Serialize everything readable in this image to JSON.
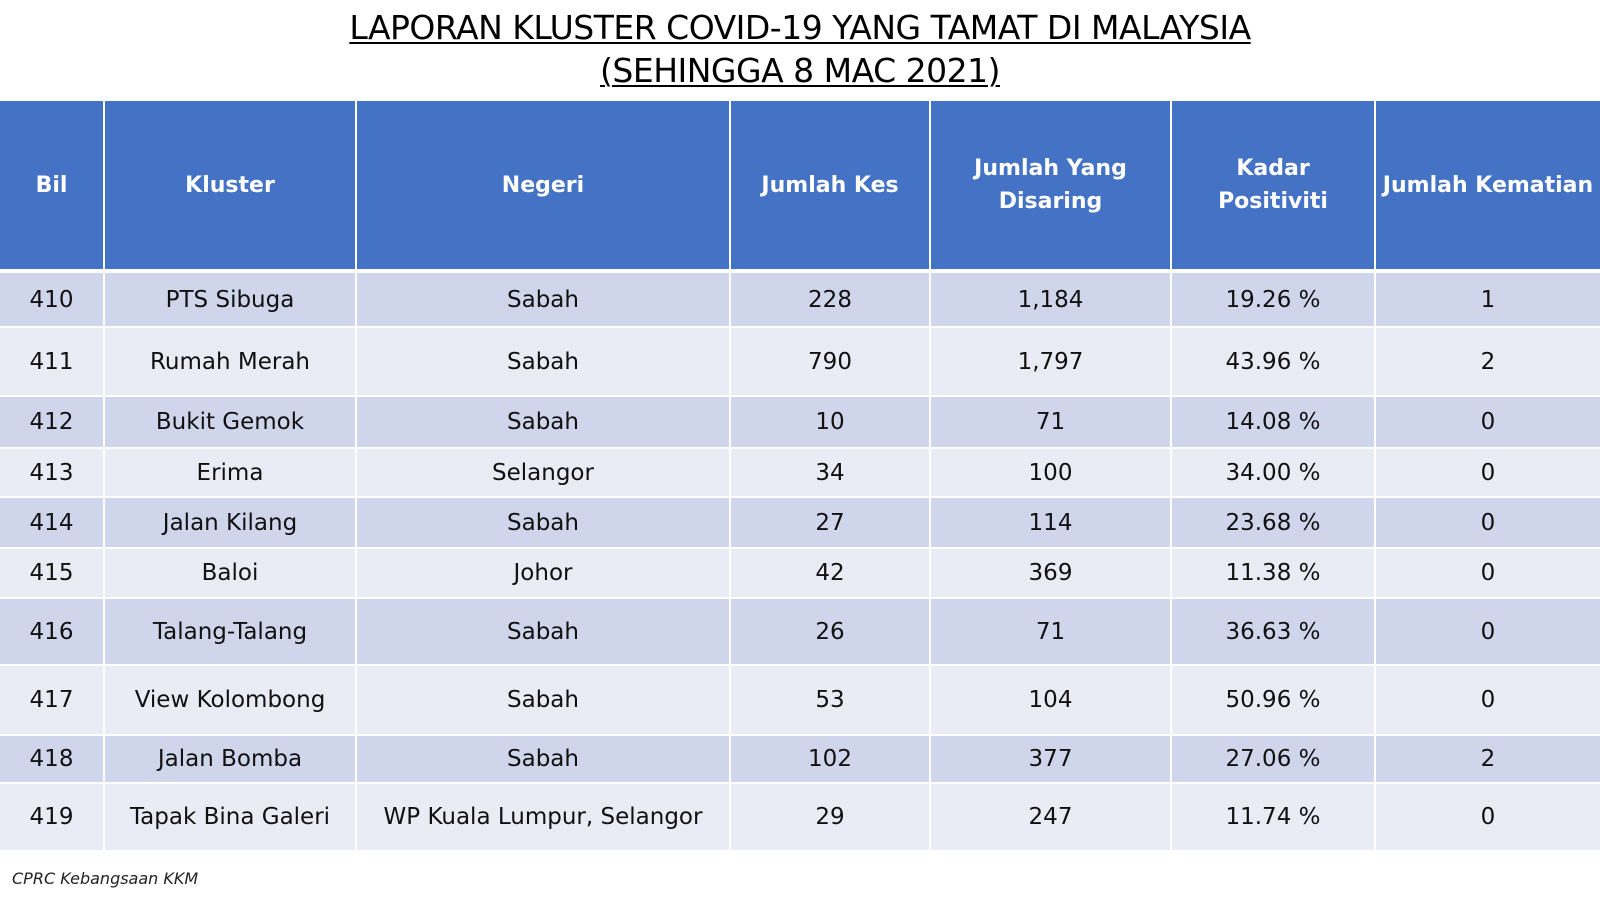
{
  "title": {
    "line1": "LAPORAN KLUSTER COVID-19 YANG TAMAT DI MALAYSIA",
    "line2": "(SEHINGGA  8 MAC 2021)"
  },
  "table": {
    "headers": [
      "Bil",
      "Kluster",
      "Negeri",
      "Jumlah Kes",
      "Jumlah Yang Disaring",
      "Kadar Positiviti",
      "Jumlah Kematian"
    ],
    "rows": [
      [
        "410",
        "PTS Sibuga",
        "Sabah",
        "228",
        "1,184",
        "19.26 %",
        "1"
      ],
      [
        "411",
        "Rumah Merah",
        "Sabah",
        "790",
        "1,797",
        "43.96 %",
        "2"
      ],
      [
        "412",
        "Bukit Gemok",
        "Sabah",
        "10",
        "71",
        "14.08 %",
        "0"
      ],
      [
        "413",
        "Erima",
        "Selangor",
        "34",
        "100",
        "34.00 %",
        "0"
      ],
      [
        "414",
        "Jalan Kilang",
        "Sabah",
        "27",
        "114",
        "23.68 %",
        "0"
      ],
      [
        "415",
        "Baloi",
        "Johor",
        "42",
        "369",
        "11.38 %",
        "0"
      ],
      [
        "416",
        "Talang-Talang",
        "Sabah",
        "26",
        "71",
        "36.63 %",
        "0"
      ],
      [
        "417",
        "View Kolombong",
        "Sabah",
        "53",
        "104",
        "50.96 %",
        "0"
      ],
      [
        "418",
        "Jalan Bomba",
        "Sabah",
        "102",
        "377",
        "27.06 %",
        "2"
      ],
      [
        "419",
        "Tapak Bina Galeri",
        "WP Kuala Lumpur, Selangor",
        "29",
        "247",
        "11.74 %",
        "0"
      ]
    ]
  },
  "footer": "CPRC Kebangsaan KKM",
  "colors": {
    "header_bg": "#4472c4",
    "row_dark": "#cfd5ea",
    "row_light": "#e9ebf5"
  }
}
